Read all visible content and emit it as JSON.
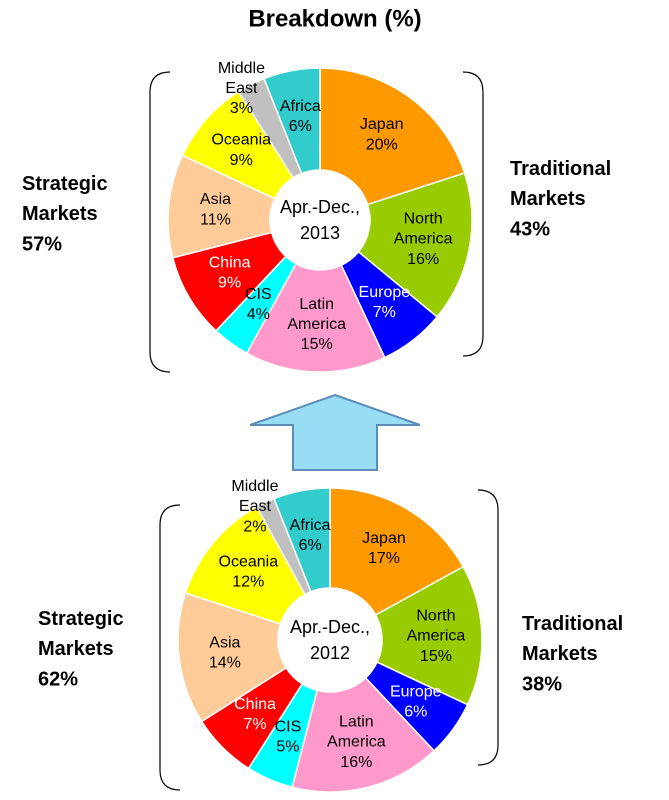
{
  "title": "Breakdown (%)",
  "chart_data": [
    {
      "type": "pie",
      "center_label": [
        "Apr.-Dec.,",
        "2013"
      ],
      "categories": [
        "Japan",
        "North America",
        "Europe",
        "Latin America",
        "CIS",
        "China",
        "Asia",
        "Oceania",
        "Middle East",
        "Africa"
      ],
      "values": [
        20,
        16,
        7,
        15,
        4,
        9,
        11,
        9,
        3,
        6
      ],
      "value_labels": [
        "20%",
        "16%",
        "7%",
        "15%",
        "4%",
        "9%",
        "11%",
        "9%",
        "3%",
        "6%"
      ],
      "colors": [
        "#ff9900",
        "#99cc00",
        "#0000ff",
        "#ff99cc",
        "#00ffff",
        "#ff0000",
        "#ffcc99",
        "#ffff00",
        "#c0c0c0",
        "#33cccc"
      ],
      "groups": [
        {
          "name": "Strategic Markets",
          "value": 57,
          "value_label": "57%"
        },
        {
          "name": "Traditional Markets",
          "value": 43,
          "value_label": "43%"
        }
      ]
    },
    {
      "type": "pie",
      "center_label": [
        "Apr.-Dec.,",
        "2012"
      ],
      "categories": [
        "Japan",
        "North America",
        "Europe",
        "Latin America",
        "CIS",
        "China",
        "Asia",
        "Oceania",
        "Middle East",
        "Africa"
      ],
      "values": [
        17,
        15,
        6,
        16,
        5,
        7,
        14,
        12,
        2,
        6
      ],
      "value_labels": [
        "17%",
        "15%",
        "6%",
        "16%",
        "5%",
        "7%",
        "14%",
        "12%",
        "2%",
        "6%"
      ],
      "colors": [
        "#ff9900",
        "#99cc00",
        "#0000ff",
        "#ff99cc",
        "#00ffff",
        "#ff0000",
        "#ffcc99",
        "#ffff00",
        "#c0c0c0",
        "#33cccc"
      ],
      "groups": [
        {
          "name": "Strategic Markets",
          "value": 62,
          "value_label": "62%"
        },
        {
          "name": "Traditional Markets",
          "value": 38,
          "value_label": "38%"
        }
      ]
    }
  ]
}
